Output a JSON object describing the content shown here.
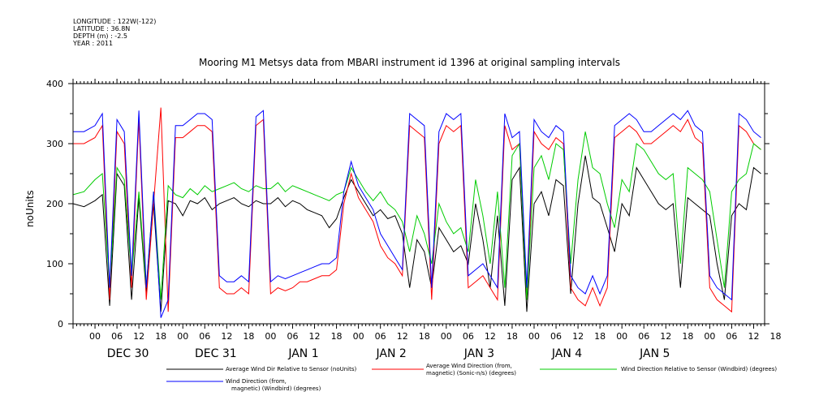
{
  "meta": {
    "longitude": "LONGITUDE : 122W(-122)",
    "latitude": "LATITUDE : 36.8N",
    "depth": "DEPTH (m) : -2.5",
    "year": "YEAR : 2011"
  },
  "chart_data": {
    "type": "line",
    "title": "Mooring M1 Metsys data from MBARI instrument id 1396 at original sampling intervals",
    "ylabel": "noUnits",
    "xlabel": "",
    "ylim": [
      0,
      400
    ],
    "y_ticks": [
      0,
      100,
      200,
      300,
      400
    ],
    "xlim_hours": [
      -6,
      183
    ],
    "x_tick_labels": [
      "00",
      "06",
      "12",
      "18",
      "00",
      "06",
      "12",
      "18",
      "00",
      "06",
      "12",
      "18",
      "00",
      "06",
      "12",
      "18",
      "00",
      "06",
      "12",
      "18",
      "00",
      "06",
      "12",
      "18",
      "00",
      "06",
      "12",
      "18",
      "00",
      "06",
      "12",
      "18"
    ],
    "day_labels": [
      "DEC 30",
      "DEC 31",
      "JAN  1",
      "JAN  2",
      "JAN  3",
      "JAN  4",
      "JAN  5"
    ],
    "grid": false,
    "series": [
      {
        "name": "Average Wind Dir Relative to Sensor (noUnits)",
        "color": "#000000",
        "x": [
          -6,
          -3,
          0,
          2,
          4,
          6,
          8,
          10,
          12,
          14,
          16,
          18,
          20,
          22,
          24,
          26,
          28,
          30,
          32,
          34,
          36,
          38,
          40,
          42,
          44,
          46,
          48,
          50,
          52,
          54,
          56,
          58,
          60,
          62,
          64,
          66,
          68,
          70,
          72,
          74,
          76,
          78,
          80,
          82,
          84,
          86,
          88,
          90,
          92,
          94,
          96,
          98,
          100,
          102,
          104,
          106,
          108,
          110,
          112,
          114,
          116,
          118,
          120,
          122,
          124,
          126,
          128,
          130,
          132,
          134,
          136,
          138,
          140,
          142,
          144,
          146,
          148,
          150,
          152,
          154,
          156,
          158,
          160,
          162,
          164,
          166,
          168,
          170,
          172,
          174,
          176,
          178,
          180,
          182
        ],
        "y": [
          200,
          195,
          205,
          215,
          30,
          250,
          230,
          40,
          210,
          50,
          200,
          20,
          205,
          200,
          180,
          205,
          200,
          210,
          190,
          200,
          205,
          210,
          200,
          195,
          205,
          200,
          200,
          210,
          195,
          205,
          200,
          190,
          185,
          180,
          160,
          175,
          210,
          240,
          220,
          200,
          180,
          190,
          175,
          180,
          150,
          60,
          140,
          120,
          60,
          160,
          140,
          120,
          130,
          100,
          200,
          140,
          60,
          180,
          30,
          240,
          260,
          20,
          200,
          220,
          180,
          240,
          230,
          50,
          200,
          280,
          210,
          200,
          160,
          120,
          200,
          180,
          260,
          240,
          220,
          200,
          190,
          200,
          60,
          210,
          200,
          190,
          180,
          100,
          40,
          180,
          200,
          190,
          260,
          250
        ]
      },
      {
        "name": "Average Wind Direction (from, magnetic) (Sonic-n/s) (degrees)",
        "color": "#ff0000",
        "x": [
          -6,
          -3,
          0,
          2,
          4,
          6,
          8,
          10,
          12,
          14,
          16,
          18,
          20,
          22,
          24,
          26,
          28,
          30,
          32,
          34,
          36,
          38,
          40,
          42,
          44,
          46,
          48,
          50,
          52,
          54,
          56,
          58,
          60,
          62,
          64,
          66,
          68,
          70,
          72,
          74,
          76,
          78,
          80,
          82,
          84,
          86,
          88,
          90,
          92,
          94,
          96,
          98,
          100,
          102,
          104,
          106,
          108,
          110,
          112,
          114,
          116,
          118,
          120,
          122,
          124,
          126,
          128,
          130,
          132,
          134,
          136,
          138,
          140,
          142,
          144,
          146,
          148,
          150,
          152,
          154,
          156,
          158,
          160,
          162,
          164,
          166,
          168,
          170,
          172,
          174,
          176,
          178,
          180,
          182
        ],
        "y": [
          300,
          300,
          310,
          330,
          40,
          320,
          300,
          60,
          340,
          40,
          200,
          360,
          20,
          310,
          310,
          320,
          330,
          330,
          320,
          60,
          50,
          50,
          60,
          50,
          330,
          340,
          50,
          60,
          55,
          60,
          70,
          70,
          75,
          80,
          80,
          90,
          200,
          250,
          210,
          190,
          170,
          130,
          110,
          100,
          80,
          330,
          320,
          310,
          40,
          300,
          330,
          320,
          330,
          60,
          70,
          80,
          60,
          40,
          330,
          290,
          300,
          40,
          320,
          300,
          290,
          310,
          300,
          60,
          40,
          30,
          60,
          30,
          60,
          310,
          320,
          330,
          320,
          300,
          300,
          310,
          320,
          330,
          320,
          340,
          310,
          300,
          60,
          40,
          30,
          20,
          330,
          320,
          300,
          290
        ]
      },
      {
        "name": "Wind Direction Relative to Sensor (Windbird) (degrees)",
        "color": "#00cc00",
        "x": [
          -6,
          -3,
          0,
          2,
          4,
          6,
          8,
          10,
          12,
          14,
          16,
          18,
          20,
          22,
          24,
          26,
          28,
          30,
          32,
          34,
          36,
          38,
          40,
          42,
          44,
          46,
          48,
          50,
          52,
          54,
          56,
          58,
          60,
          62,
          64,
          66,
          68,
          70,
          72,
          74,
          76,
          78,
          80,
          82,
          84,
          86,
          88,
          90,
          92,
          94,
          96,
          98,
          100,
          102,
          104,
          106,
          108,
          110,
          112,
          114,
          116,
          118,
          120,
          122,
          124,
          126,
          128,
          130,
          132,
          134,
          136,
          138,
          140,
          142,
          144,
          146,
          148,
          150,
          152,
          154,
          156,
          158,
          160,
          162,
          164,
          166,
          168,
          170,
          172,
          174,
          176,
          178,
          180,
          182
        ],
        "y": [
          215,
          220,
          240,
          250,
          60,
          260,
          240,
          80,
          220,
          60,
          220,
          40,
          230,
          215,
          210,
          225,
          215,
          230,
          220,
          225,
          230,
          235,
          225,
          220,
          230,
          225,
          225,
          235,
          220,
          230,
          225,
          220,
          215,
          210,
          205,
          215,
          220,
          260,
          240,
          220,
          205,
          220,
          200,
          190,
          170,
          120,
          180,
          150,
          100,
          200,
          170,
          150,
          160,
          120,
          240,
          180,
          100,
          220,
          60,
          280,
          300,
          40,
          260,
          280,
          240,
          300,
          290,
          100,
          240,
          320,
          260,
          250,
          200,
          160,
          240,
          220,
          300,
          290,
          270,
          250,
          240,
          250,
          100,
          260,
          250,
          240,
          220,
          140,
          60,
          220,
          240,
          250,
          300,
          290
        ]
      },
      {
        "name": "Wind Direction (from, magnetic) (Windbird) (degrees)",
        "color": "#0000ff",
        "x": [
          -6,
          -3,
          0,
          2,
          4,
          6,
          8,
          10,
          12,
          14,
          16,
          18,
          20,
          22,
          24,
          26,
          28,
          30,
          32,
          34,
          36,
          38,
          40,
          42,
          44,
          46,
          48,
          50,
          52,
          54,
          56,
          58,
          60,
          62,
          64,
          66,
          68,
          70,
          72,
          74,
          76,
          78,
          80,
          82,
          84,
          86,
          88,
          90,
          92,
          94,
          96,
          98,
          100,
          102,
          104,
          106,
          108,
          110,
          112,
          114,
          116,
          118,
          120,
          122,
          124,
          126,
          128,
          130,
          132,
          134,
          136,
          138,
          140,
          142,
          144,
          146,
          148,
          150,
          152,
          154,
          156,
          158,
          160,
          162,
          164,
          166,
          168,
          170,
          172,
          174,
          176,
          178,
          180,
          182
        ],
        "y": [
          320,
          320,
          330,
          350,
          60,
          340,
          320,
          80,
          355,
          60,
          220,
          10,
          40,
          330,
          330,
          340,
          350,
          350,
          340,
          80,
          70,
          70,
          80,
          70,
          345,
          355,
          70,
          80,
          75,
          80,
          85,
          90,
          95,
          100,
          100,
          110,
          220,
          270,
          230,
          210,
          190,
          150,
          130,
          110,
          90,
          350,
          340,
          330,
          60,
          320,
          350,
          340,
          350,
          80,
          90,
          100,
          80,
          60,
          350,
          310,
          320,
          60,
          340,
          320,
          310,
          330,
          320,
          80,
          60,
          50,
          80,
          50,
          80,
          330,
          340,
          350,
          340,
          320,
          320,
          330,
          340,
          350,
          340,
          355,
          330,
          320,
          80,
          60,
          50,
          40,
          350,
          340,
          320,
          310
        ]
      }
    ]
  },
  "legend": {
    "black_line1": "Average Wind Dir Relative to Sensor (noUnits)",
    "red_line1": "Average Wind Direction (from,",
    "red_line2": "magnetic) (Sonic-n/s) (degrees)",
    "green_line1": "Wind Direction Relative to Sensor (Windbird) (degrees)",
    "blue_line1": "Wind Direction (from,",
    "blue_line2": "magnetic) (Windbird) (degrees)"
  }
}
